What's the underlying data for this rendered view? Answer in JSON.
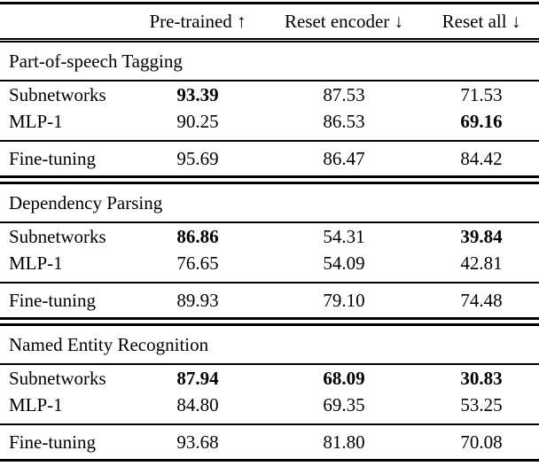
{
  "table": {
    "columns": [
      "",
      "Pre-trained ↑",
      "Reset encoder ↓",
      "Reset all ↓"
    ],
    "sections": [
      {
        "title": "Part-of-speech Tagging",
        "rows": [
          {
            "label": "Subnetworks",
            "values": [
              "93.39",
              "87.53",
              "71.53"
            ],
            "bold": [
              true,
              false,
              false
            ]
          },
          {
            "label": "MLP-1",
            "values": [
              "90.25",
              "86.53",
              "69.16"
            ],
            "bold": [
              false,
              false,
              true
            ]
          }
        ],
        "footer": {
          "label": "Fine-tuning",
          "values": [
            "95.69",
            "86.47",
            "84.42"
          ],
          "bold": [
            false,
            false,
            false
          ]
        }
      },
      {
        "title": "Dependency Parsing",
        "rows": [
          {
            "label": "Subnetworks",
            "values": [
              "86.86",
              "54.31",
              "39.84"
            ],
            "bold": [
              true,
              false,
              true
            ]
          },
          {
            "label": "MLP-1",
            "values": [
              "76.65",
              "54.09",
              "42.81"
            ],
            "bold": [
              false,
              false,
              false
            ]
          }
        ],
        "footer": {
          "label": "Fine-tuning",
          "values": [
            "89.93",
            "79.10",
            "74.48"
          ],
          "bold": [
            false,
            false,
            false
          ]
        }
      },
      {
        "title": "Named Entity Recognition",
        "rows": [
          {
            "label": "Subnetworks",
            "values": [
              "87.94",
              "68.09",
              "30.83"
            ],
            "bold": [
              true,
              true,
              true
            ]
          },
          {
            "label": "MLP-1",
            "values": [
              "84.80",
              "69.35",
              "53.25"
            ],
            "bold": [
              false,
              false,
              false
            ]
          }
        ],
        "footer": {
          "label": "Fine-tuning",
          "values": [
            "93.68",
            "81.80",
            "70.08"
          ],
          "bold": [
            false,
            false,
            false
          ]
        }
      }
    ]
  }
}
